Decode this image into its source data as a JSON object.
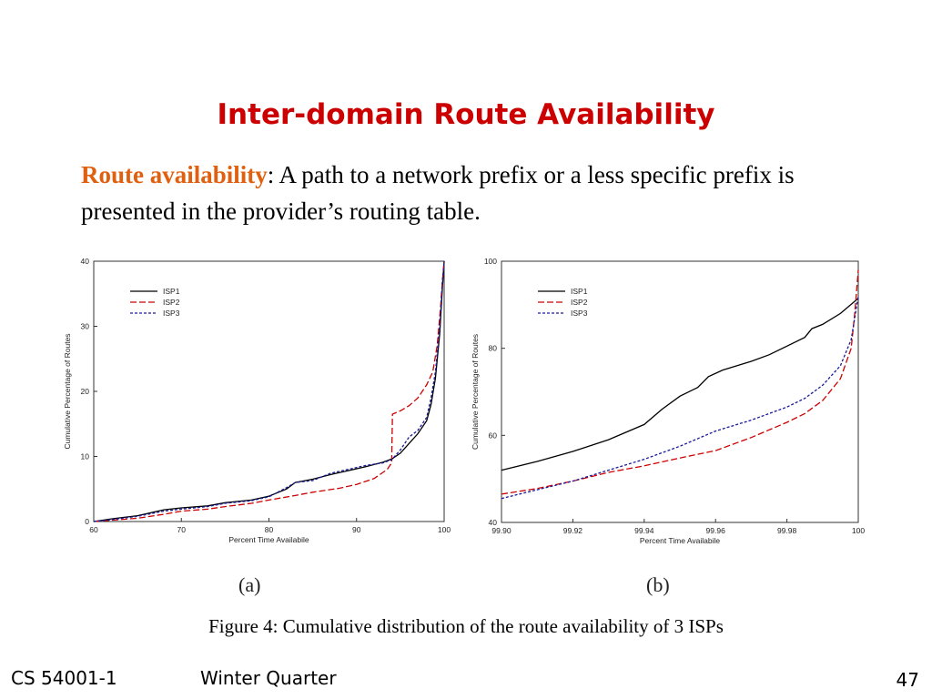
{
  "slide": {
    "title": "Inter-domain Route Availability",
    "definition_term": "Route availability",
    "definition_text": ": A path to a network prefix or a less specific prefix is presented in the provider’s routing table.",
    "caption": "Figure 4: Cumulative distribution of the route availability of 3 ISPs",
    "footer_course": "CS 54001-1",
    "footer_term": "Winter Quarter",
    "page_number": "47"
  },
  "colors": {
    "title": "#cc0000",
    "term": "#e06010",
    "ISP1": "#000000",
    "ISP2": "#cc0000",
    "ISP3": "#1a1a99"
  },
  "chart_data": [
    {
      "type": "line",
      "panel_label": "(a)",
      "xlabel": "Percent Time Availabile",
      "ylabel": "Cumulative Percentage of Routes",
      "xlim": [
        60,
        100
      ],
      "ylim": [
        0,
        40
      ],
      "xticks": [
        60,
        70,
        80,
        90,
        100
      ],
      "yticks": [
        0,
        10,
        20,
        30,
        40
      ],
      "legend_position": "top-left",
      "series": [
        {
          "name": "ISP1",
          "style": "solid",
          "color": "#000000",
          "points": [
            [
              60,
              0
            ],
            [
              62,
              0.4
            ],
            [
              65,
              0.9
            ],
            [
              68,
              1.8
            ],
            [
              70,
              2.1
            ],
            [
              73,
              2.4
            ],
            [
              75,
              2.9
            ],
            [
              78,
              3.3
            ],
            [
              80,
              3.9
            ],
            [
              82,
              5
            ],
            [
              83,
              6
            ],
            [
              85,
              6.5
            ],
            [
              87,
              7.2
            ],
            [
              89,
              7.8
            ],
            [
              91,
              8.4
            ],
            [
              93,
              9.1
            ],
            [
              94,
              9.6
            ],
            [
              95,
              10.5
            ],
            [
              96,
              12
            ],
            [
              97,
              13.5
            ],
            [
              98,
              15.5
            ],
            [
              98.5,
              18
            ],
            [
              99,
              22
            ],
            [
              99.5,
              29
            ],
            [
              99.8,
              36
            ],
            [
              100,
              40
            ]
          ]
        },
        {
          "name": "ISP2",
          "style": "dashed",
          "color": "#cc0000",
          "points": [
            [
              60,
              0
            ],
            [
              65,
              0.5
            ],
            [
              68,
              1.1
            ],
            [
              70,
              1.6
            ],
            [
              73,
              1.9
            ],
            [
              75,
              2.3
            ],
            [
              78,
              2.8
            ],
            [
              80,
              3.3
            ],
            [
              83,
              4
            ],
            [
              85,
              4.5
            ],
            [
              88,
              5.1
            ],
            [
              90,
              5.7
            ],
            [
              92,
              6.6
            ],
            [
              93.5,
              8
            ],
            [
              94,
              9
            ],
            [
              94.1,
              16.5
            ],
            [
              95,
              17
            ],
            [
              96,
              17.8
            ],
            [
              97,
              19
            ],
            [
              98,
              21
            ],
            [
              98.7,
              23
            ],
            [
              99.2,
              27
            ],
            [
              99.6,
              33
            ],
            [
              99.8,
              37
            ],
            [
              100,
              40
            ]
          ]
        },
        {
          "name": "ISP3",
          "style": "dotted",
          "color": "#1a1a99",
          "points": [
            [
              60,
              0
            ],
            [
              62,
              0.3
            ],
            [
              65,
              0.8
            ],
            [
              68,
              1.6
            ],
            [
              70,
              1.9
            ],
            [
              73,
              2.3
            ],
            [
              75,
              2.8
            ],
            [
              78,
              3.2
            ],
            [
              80,
              3.8
            ],
            [
              82,
              5.2
            ],
            [
              83,
              6
            ],
            [
              85,
              6.3
            ],
            [
              87,
              7.4
            ],
            [
              89,
              8
            ],
            [
              91,
              8.6
            ],
            [
              93,
              9
            ],
            [
              94,
              9.5
            ],
            [
              95,
              11
            ],
            [
              96,
              13
            ],
            [
              97,
              14
            ],
            [
              98,
              16
            ],
            [
              98.5,
              19
            ],
            [
              99,
              23
            ],
            [
              99.5,
              30
            ],
            [
              99.8,
              37
            ],
            [
              100,
              40
            ]
          ]
        }
      ]
    },
    {
      "type": "line",
      "panel_label": "(b)",
      "xlabel": "Percent Time Availabile",
      "ylabel": "Cumulative Percentage of Routes",
      "xlim": [
        99.9,
        100
      ],
      "ylim": [
        40,
        100
      ],
      "xticks": [
        99.9,
        99.92,
        99.94,
        99.96,
        99.98,
        100
      ],
      "yticks": [
        40,
        60,
        80,
        100
      ],
      "legend_position": "top-left",
      "series": [
        {
          "name": "ISP1",
          "style": "solid",
          "color": "#000000",
          "points": [
            [
              99.9,
              52
            ],
            [
              99.91,
              54
            ],
            [
              99.92,
              56.3
            ],
            [
              99.93,
              59
            ],
            [
              99.94,
              62.5
            ],
            [
              99.945,
              66
            ],
            [
              99.95,
              69
            ],
            [
              99.955,
              71
            ],
            [
              99.958,
              73.5
            ],
            [
              99.962,
              75
            ],
            [
              99.97,
              77
            ],
            [
              99.975,
              78.5
            ],
            [
              99.98,
              80.5
            ],
            [
              99.985,
              82.5
            ],
            [
              99.987,
              84.5
            ],
            [
              99.99,
              85.5
            ],
            [
              99.995,
              88
            ],
            [
              100,
              91.5
            ]
          ]
        },
        {
          "name": "ISP2",
          "style": "dashed",
          "color": "#cc0000",
          "points": [
            [
              99.9,
              46.5
            ],
            [
              99.91,
              47.8
            ],
            [
              99.92,
              49.5
            ],
            [
              99.93,
              51.5
            ],
            [
              99.94,
              53
            ],
            [
              99.95,
              54.8
            ],
            [
              99.96,
              56.5
            ],
            [
              99.97,
              59.5
            ],
            [
              99.98,
              63
            ],
            [
              99.985,
              65
            ],
            [
              99.99,
              68
            ],
            [
              99.995,
              73
            ],
            [
              99.998,
              80
            ],
            [
              99.999,
              88
            ],
            [
              100,
              98
            ]
          ]
        },
        {
          "name": "ISP3",
          "style": "dotted",
          "color": "#1a1a99",
          "points": [
            [
              99.9,
              45.5
            ],
            [
              99.91,
              47.5
            ],
            [
              99.92,
              49.5
            ],
            [
              99.93,
              52
            ],
            [
              99.94,
              54.5
            ],
            [
              99.95,
              57.5
            ],
            [
              99.96,
              61
            ],
            [
              99.97,
              63.5
            ],
            [
              99.98,
              66.5
            ],
            [
              99.985,
              68.5
            ],
            [
              99.99,
              71.5
            ],
            [
              99.995,
              76
            ],
            [
              99.998,
              82
            ],
            [
              100,
              92
            ]
          ]
        }
      ]
    }
  ]
}
